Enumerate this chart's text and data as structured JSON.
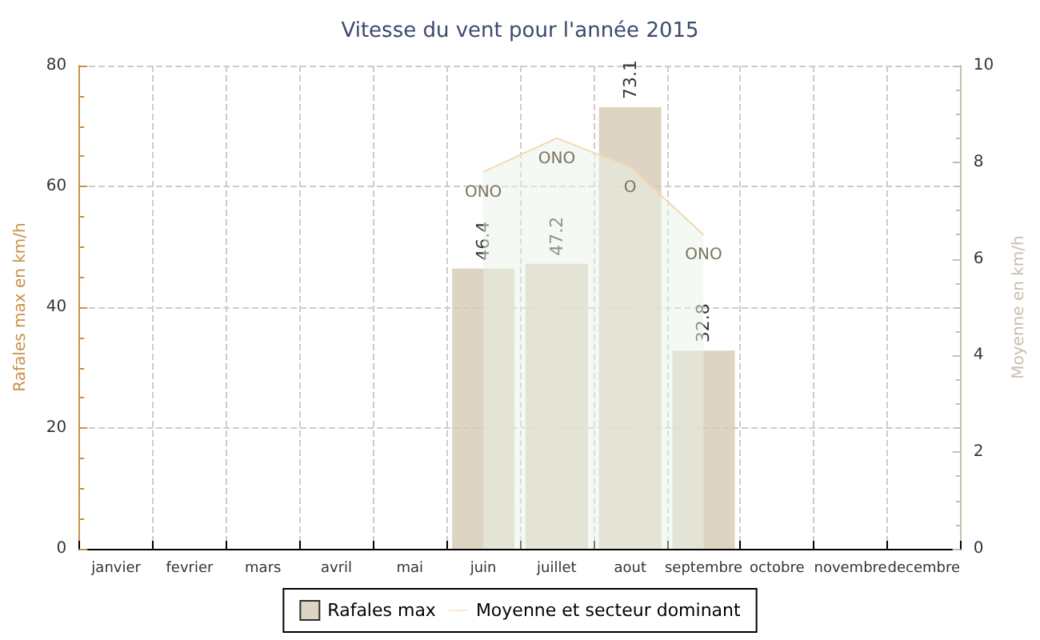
{
  "chart_data": {
    "type": "bar",
    "title": "Vitesse du vent pour l'année 2015",
    "xlabel": null,
    "ylabel": "Rafales max en km/h",
    "y2label": "Moyenne en km/h",
    "categories": [
      "janvier",
      "fevrier",
      "mars",
      "avril",
      "mai",
      "juin",
      "juillet",
      "aout",
      "septembre",
      "octobre",
      "novembre",
      "decembre"
    ],
    "series": [
      {
        "name": "Rafales max",
        "color": "#d5c9b4",
        "values": [
          null,
          null,
          null,
          null,
          null,
          46.4,
          47.2,
          73.1,
          32.8,
          null,
          null,
          null
        ],
        "value_labels": [
          null,
          null,
          null,
          null,
          null,
          "46.4",
          "47.2",
          "73.1",
          "32.8",
          null,
          null,
          null
        ]
      },
      {
        "name": "Moyenne et secteur dominant",
        "type": "area",
        "axis": "y2",
        "color": "#eaf3e8",
        "values": [
          null,
          null,
          null,
          null,
          null,
          7.8,
          8.5,
          7.9,
          6.5,
          null,
          null,
          null
        ],
        "value_labels": [
          null,
          null,
          null,
          null,
          null,
          "ONO",
          "ONO",
          "O",
          "ONO",
          null,
          null,
          null
        ]
      }
    ],
    "ylim": [
      0,
      80
    ],
    "yticks": [
      0,
      20,
      40,
      60,
      80
    ],
    "y2lim": [
      0,
      10
    ],
    "y2ticks": [
      0,
      2,
      4,
      6,
      8,
      10
    ],
    "grid": true,
    "legend": "bottom",
    "marker": "none"
  }
}
